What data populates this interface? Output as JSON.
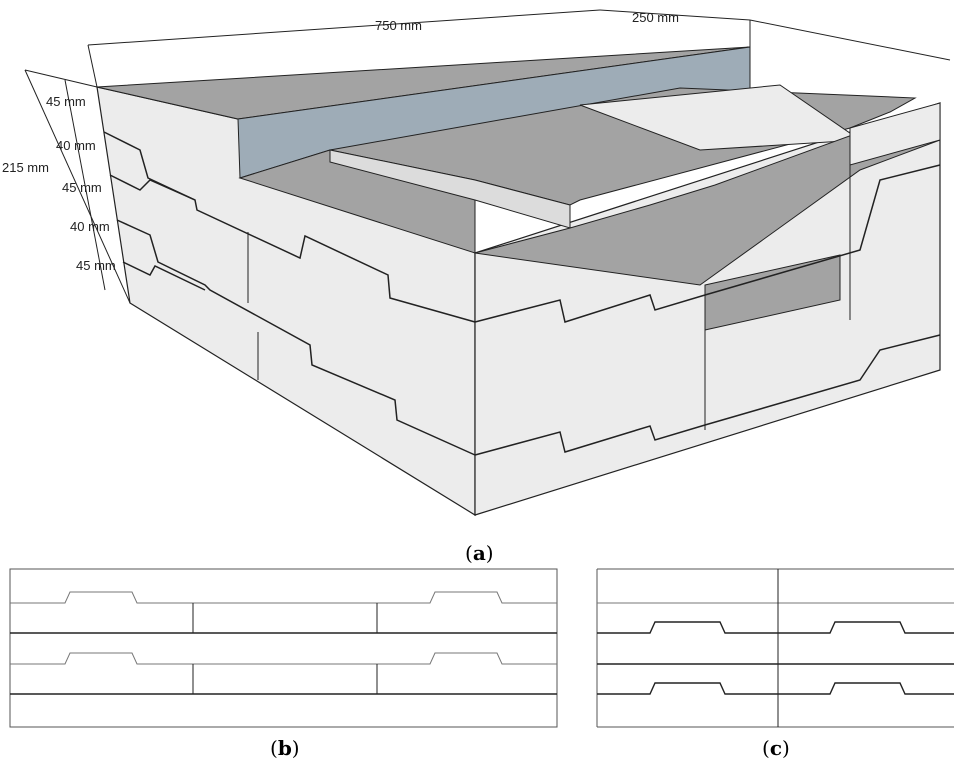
{
  "dimensions": {
    "length": "750 mm",
    "width": "250 mm",
    "height_total": "215 mm",
    "layer1": "45 mm",
    "layer2": "40 mm",
    "layer3": "45 mm",
    "layer4": "40 mm",
    "layer5": "45 mm"
  },
  "captions": {
    "a_letter": "a",
    "b_letter": "b",
    "c_letter": "c",
    "open": "(",
    "close": ")"
  },
  "colors": {
    "block_face": "#ececec",
    "block_top": "#a3a3a3",
    "inner_wall": "#9eacb7",
    "line": "#222222"
  }
}
